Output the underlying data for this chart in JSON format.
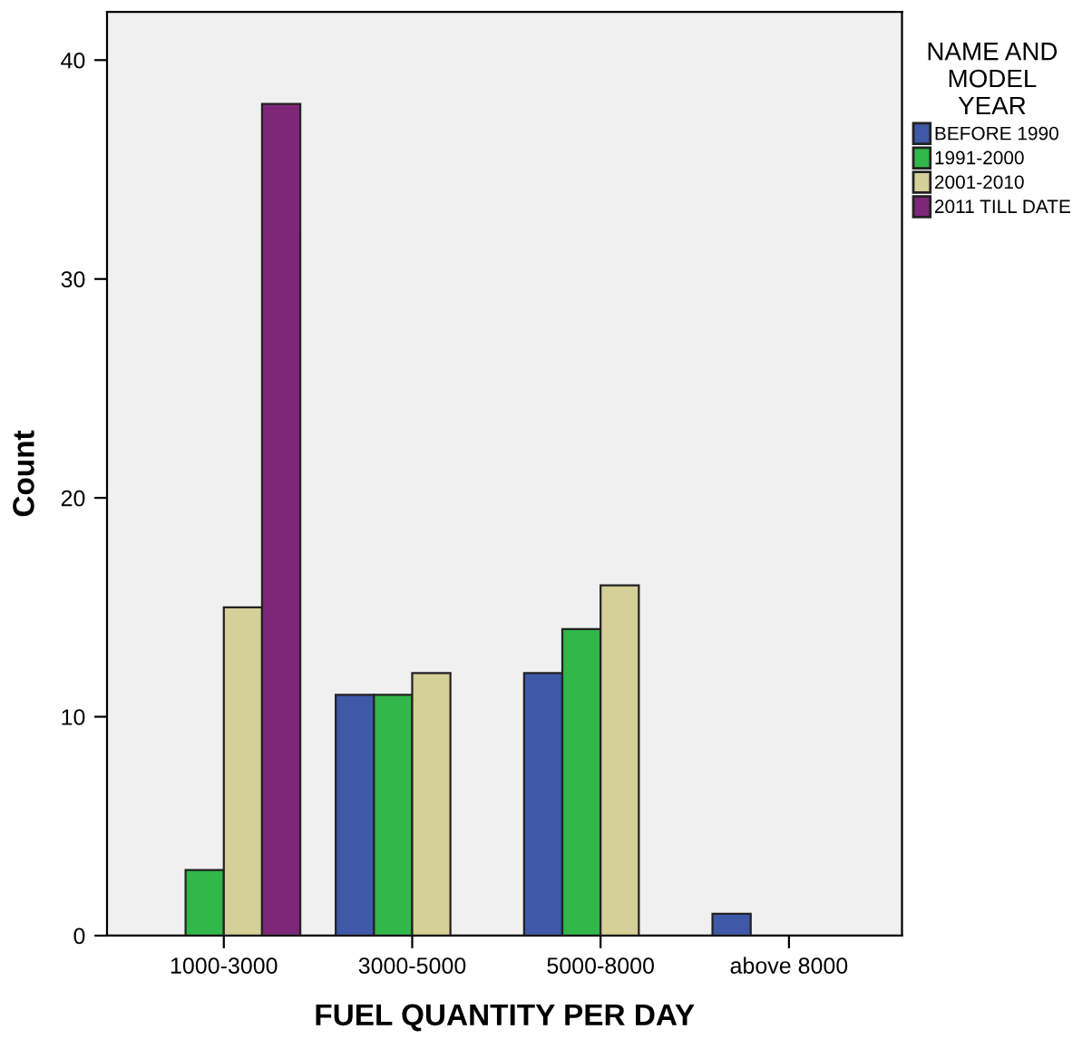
{
  "chart_data": {
    "type": "bar",
    "xlabel": "FUEL QUANTITY PER DAY",
    "ylabel": "Count",
    "legend_title": "NAME AND\nMODEL\nYEAR",
    "categories": [
      "1000-3000",
      "3000-5000",
      "5000-8000",
      "above 8000"
    ],
    "series": [
      {
        "name": "BEFORE 1990",
        "color": "#3f58a8",
        "values": [
          null,
          11,
          12,
          1
        ]
      },
      {
        "name": "1991-2000",
        "color": "#31b74a",
        "values": [
          3,
          11,
          14,
          null
        ]
      },
      {
        "name": "2001-2010",
        "color": "#d5cf98",
        "values": [
          15,
          12,
          16,
          null
        ]
      },
      {
        "name": "2011 TILL DATE",
        "color": "#7e2778",
        "values": [
          38,
          null,
          null,
          null
        ]
      }
    ],
    "ylim": [
      0,
      42.2
    ],
    "yticks": [
      0,
      10,
      20,
      30,
      40
    ],
    "grid": false,
    "legend": "top right"
  }
}
